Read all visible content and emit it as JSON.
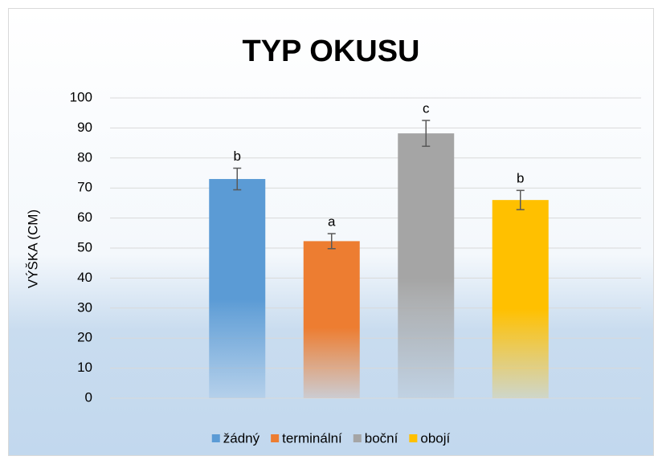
{
  "chart_data": {
    "type": "bar",
    "title": "TYP OKUSU",
    "y_label": "VÝŠKA (CM)",
    "series": [
      {
        "name": "žádný",
        "color": "#5b9bd5",
        "values": [
          73
        ],
        "errors": [
          3.6
        ],
        "annotation": "b"
      },
      {
        "name": "terminální",
        "color": "#ed7d31",
        "values": [
          52.3
        ],
        "errors": [
          2.5
        ],
        "annotation": "a"
      },
      {
        "name": "boční",
        "color": "#a5a5a5",
        "values": [
          88.2
        ],
        "errors": [
          4.3
        ],
        "annotation": "c"
      },
      {
        "name": "obojí",
        "color": "#ffc000",
        "values": [
          66
        ],
        "errors": [
          3.2
        ],
        "annotation": "b"
      }
    ],
    "ylim": [
      0,
      100
    ],
    "yticks": [
      0,
      10,
      20,
      30,
      40,
      50,
      60,
      70,
      80,
      90,
      100
    ],
    "grid": true,
    "legend": "bottom"
  }
}
